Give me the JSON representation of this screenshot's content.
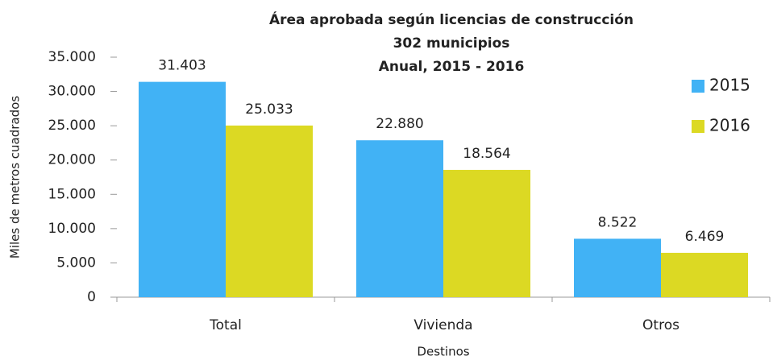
{
  "chart_data": {
    "type": "bar",
    "title": [
      "Área aprobada según licencias de construcción",
      "302 municipios",
      "Anual, 2015 - 2016"
    ],
    "x_label": "Destinos",
    "y_label": "Miles de metros cuadrados",
    "categories": [
      "Total",
      "Vivienda",
      "Otros"
    ],
    "series": [
      {
        "name": "2015",
        "color": "#41b2f5",
        "values": [
          31403,
          22880,
          8522
        ],
        "value_labels": [
          "31.403",
          "22.880",
          "8.522"
        ]
      },
      {
        "name": "2016",
        "color": "#dcd923",
        "values": [
          25033,
          18564,
          6469
        ],
        "value_labels": [
          "25.033",
          "18.564",
          "6.469"
        ]
      }
    ],
    "ylim": [
      0,
      35000
    ],
    "yticks": [
      0,
      {
        "value": 5000,
        "label": "5.000"
      },
      {
        "value": 10000,
        "label": "10.000"
      },
      {
        "value": 15000,
        "label": "15.000"
      },
      {
        "value": 20000,
        "label": "20.000"
      },
      {
        "value": 25000,
        "label": "25.000"
      },
      {
        "value": 30000,
        "label": "30.000"
      },
      {
        "value": 35000,
        "label": "35.000"
      }
    ],
    "legend": "right"
  }
}
